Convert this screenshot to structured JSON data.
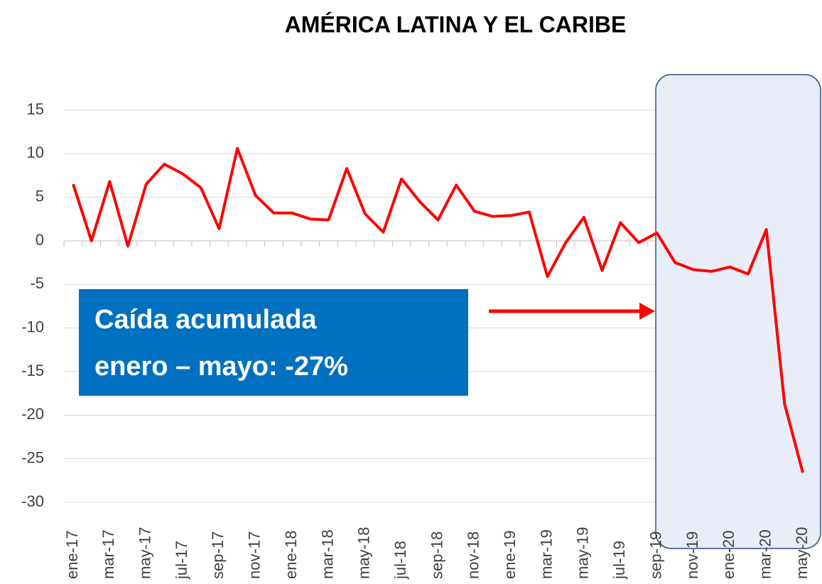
{
  "chart_data": {
    "type": "line",
    "title": "AMÉRICA  LATINA Y EL CARIBE",
    "annotation": [
      "Caída acumulada",
      "enero – mayo: -27%"
    ],
    "categories": [
      "ene-17",
      null,
      "mar-17",
      null,
      "may-17",
      null,
      "jul-17",
      null,
      "sep-17",
      null,
      "nov-17",
      null,
      "ene-18",
      null,
      "mar-18",
      null,
      "may-18",
      null,
      "jul-18",
      null,
      "sep-18",
      null,
      "nov-18",
      null,
      "ene-19",
      null,
      "mar-19",
      null,
      "may-19",
      null,
      "jul-19",
      null,
      "sep-19",
      null,
      "nov-19",
      null,
      "ene-20",
      null,
      "mar-20",
      null,
      "may-20"
    ],
    "series": [
      {
        "color": "#ff0000",
        "values": [
          6.5,
          0,
          6.8,
          -0.6,
          6.5,
          8.8,
          7.7,
          6.1,
          1.4,
          10.6,
          5.2,
          3.2,
          3.2,
          2.5,
          2.4,
          8.3,
          3.1,
          1.0,
          7.1,
          4.5,
          2.4,
          6.4,
          3.4,
          2.8,
          2.9,
          3.3,
          -4.1,
          -0.2,
          2.7,
          -3.4,
          2.1,
          -0.2,
          0.9,
          -2.5,
          -3.3,
          -3.5,
          -3.0,
          -3.8,
          1.3,
          -18.7,
          -26.6
        ]
      }
    ],
    "ylim": [
      -30,
      15
    ],
    "yticks": [
      -30,
      -25,
      -20,
      -15,
      -10,
      -5,
      0,
      5,
      10,
      15
    ],
    "grid": true
  }
}
